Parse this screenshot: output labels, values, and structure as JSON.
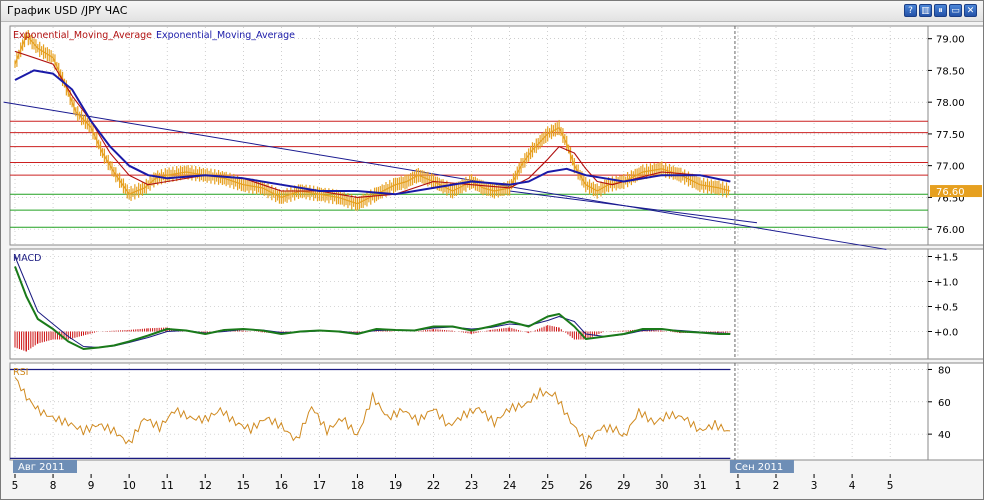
{
  "window": {
    "title": "График USD /JPY  ЧАС",
    "buttons": [
      {
        "name": "help-button",
        "glyph": "?"
      },
      {
        "name": "columns-button",
        "glyph": "▥"
      },
      {
        "name": "pause-button",
        "glyph": "⏸"
      },
      {
        "name": "minimize-button",
        "glyph": "▭"
      },
      {
        "name": "close-button",
        "glyph": "✕"
      }
    ]
  },
  "colors": {
    "price": "#e6a020",
    "ema_fast": "#b01010",
    "ema_slow": "#1a1aa8",
    "resistance": "#cc2020",
    "support": "#20a020",
    "trendline": "#1a1a90",
    "macd": "#1a7a1a",
    "signal": "#1a1a80",
    "histogram": "#cc1010",
    "rsi": "#d08a20",
    "rsi_levels": "#1a1a80",
    "grid": "#b0b0b0",
    "price_tag": "#e6a020"
  },
  "chart_data": [
    {
      "type": "line",
      "panel": "price",
      "title": "",
      "legend": [
        "Exponential_Moving_Average",
        "Exponential_Moving_Average"
      ],
      "ylim": [
        75.75,
        79.2
      ],
      "y_ticks": [
        "79.00",
        "78.50",
        "78.00",
        "77.50",
        "77.00",
        "76.50",
        "76.00"
      ],
      "current_price_label": "76.60",
      "current_price": 76.6,
      "x_ticks": [
        "5",
        "8",
        "9",
        "10",
        "11",
        "12",
        "15",
        "16",
        "17",
        "18",
        "19",
        "22",
        "23",
        "24",
        "25",
        "26",
        "29",
        "30",
        "31",
        "1",
        "2",
        "3",
        "4",
        "5"
      ],
      "x_ticks_sep": 19,
      "month_labels": [
        {
          "label": "Авг 2011",
          "at": 0
        },
        {
          "label": "Сен 2011",
          "at": 19
        }
      ],
      "last_data_slot": 18.8,
      "series": [
        {
          "name": "price",
          "x": [
            0,
            0.3,
            0.6,
            1,
            1.3,
            1.6,
            2,
            2.3,
            2.6,
            3,
            3.4,
            3.7,
            4,
            4.5,
            5,
            5.5,
            6,
            6.5,
            7,
            7.5,
            8,
            8.5,
            9,
            9.5,
            10,
            10.3,
            10.6,
            11,
            11.5,
            12,
            12.3,
            12.6,
            13,
            13.3,
            13.6,
            14,
            14.3,
            14.5,
            14.7,
            15,
            15.3,
            15.6,
            16,
            16.5,
            17,
            17.5,
            18,
            18.5,
            18.8
          ],
          "y": [
            78.6,
            79.05,
            78.85,
            78.7,
            78.3,
            77.85,
            77.6,
            77.2,
            76.9,
            76.55,
            76.65,
            76.8,
            76.85,
            76.9,
            76.85,
            76.8,
            76.7,
            76.65,
            76.5,
            76.6,
            76.55,
            76.5,
            76.4,
            76.55,
            76.7,
            76.75,
            76.85,
            76.75,
            76.6,
            76.75,
            76.65,
            76.6,
            76.65,
            77.0,
            77.25,
            77.5,
            77.6,
            77.35,
            77.0,
            76.7,
            76.6,
            76.7,
            76.75,
            76.9,
            76.95,
            76.85,
            76.7,
            76.65,
            76.6
          ]
        },
        {
          "name": "ema_fast",
          "x": [
            0,
            0.5,
            1,
            1.5,
            2,
            2.5,
            3,
            3.5,
            4,
            5,
            6,
            7,
            8,
            9,
            10,
            11,
            12,
            13,
            13.5,
            14,
            14.3,
            14.7,
            15,
            15.3,
            15.7,
            16,
            17,
            18,
            18.8
          ],
          "y": [
            78.8,
            78.7,
            78.6,
            78.1,
            77.7,
            77.2,
            76.85,
            76.7,
            76.75,
            76.85,
            76.8,
            76.6,
            76.6,
            76.5,
            76.55,
            76.75,
            76.7,
            76.65,
            76.8,
            77.1,
            77.3,
            77.2,
            76.95,
            76.75,
            76.7,
            76.75,
            76.9,
            76.85,
            76.75
          ]
        },
        {
          "name": "ema_slow",
          "x": [
            0,
            0.5,
            1,
            1.5,
            2,
            2.5,
            3,
            3.5,
            4,
            5,
            6,
            7,
            8,
            9,
            10,
            11,
            12,
            13,
            13.5,
            14,
            14.5,
            15,
            15.5,
            16,
            17,
            18,
            18.8
          ],
          "y": [
            78.35,
            78.5,
            78.45,
            78.2,
            77.7,
            77.3,
            77.0,
            76.85,
            76.8,
            76.85,
            76.8,
            76.7,
            76.6,
            76.6,
            76.55,
            76.65,
            76.75,
            76.7,
            76.75,
            76.9,
            76.95,
            76.85,
            76.8,
            76.75,
            76.85,
            76.85,
            76.75
          ]
        }
      ],
      "horizontal_levels": [
        {
          "y": 77.7,
          "kind": "resistance"
        },
        {
          "y": 77.52,
          "kind": "resistance"
        },
        {
          "y": 77.3,
          "kind": "resistance"
        },
        {
          "y": 77.05,
          "kind": "resistance"
        },
        {
          "y": 76.85,
          "kind": "resistance"
        },
        {
          "y": 76.55,
          "kind": "support"
        },
        {
          "y": 76.3,
          "kind": "support"
        },
        {
          "y": 76.03,
          "kind": "support"
        }
      ],
      "trendlines": [
        {
          "from": [
            -0.3,
            78.0
          ],
          "to": [
            22.9,
            75.68
          ]
        },
        {
          "from": [
            13.0,
            76.6
          ],
          "to": [
            19.5,
            76.1
          ]
        }
      ]
    },
    {
      "type": "line",
      "panel": "macd",
      "title": "MACD",
      "ylim": [
        -0.55,
        1.65
      ],
      "y_ticks": [
        "+1.5",
        "+1.0",
        "+0.5",
        "+0.0"
      ],
      "series": [
        {
          "name": "macd",
          "x": [
            0,
            0.3,
            0.6,
            1,
            1.4,
            1.8,
            2.2,
            2.6,
            3,
            3.5,
            4,
            4.5,
            5,
            5.5,
            6,
            6.5,
            7,
            7.5,
            8,
            8.5,
            9,
            9.5,
            10,
            10.5,
            11,
            11.5,
            12,
            12.5,
            13,
            13.5,
            14,
            14.3,
            14.7,
            15,
            15.5,
            16,
            16.5,
            17,
            17.5,
            18,
            18.5,
            18.8
          ],
          "y": [
            1.3,
            0.7,
            0.25,
            0.05,
            -0.2,
            -0.35,
            -0.32,
            -0.28,
            -0.2,
            -0.08,
            0.05,
            0.02,
            -0.05,
            0.03,
            0.05,
            0.02,
            -0.05,
            0.0,
            0.02,
            0.0,
            -0.05,
            0.05,
            0.03,
            0.02,
            0.1,
            0.1,
            0.02,
            0.1,
            0.2,
            0.1,
            0.3,
            0.35,
            0.1,
            -0.15,
            -0.1,
            -0.05,
            0.05,
            0.05,
            0.0,
            -0.02,
            -0.05,
            -0.05
          ]
        },
        {
          "name": "signal",
          "x": [
            0,
            0.3,
            0.6,
            1,
            1.4,
            1.8,
            2.2,
            2.6,
            3,
            3.5,
            4,
            4.5,
            5,
            5.5,
            6,
            6.5,
            7,
            7.5,
            8,
            8.5,
            9,
            9.5,
            10,
            10.5,
            11,
            11.5,
            12,
            12.5,
            13,
            13.5,
            14,
            14.3,
            14.7,
            15,
            15.5,
            16,
            16.5,
            17,
            17.5,
            18,
            18.5,
            18.8
          ],
          "y": [
            1.5,
            0.95,
            0.4,
            0.15,
            -0.1,
            -0.3,
            -0.32,
            -0.29,
            -0.22,
            -0.12,
            0.0,
            0.02,
            -0.03,
            0.0,
            0.04,
            0.03,
            -0.02,
            -0.01,
            0.01,
            0.01,
            -0.03,
            0.02,
            0.03,
            0.02,
            0.07,
            0.09,
            0.05,
            0.08,
            0.15,
            0.12,
            0.22,
            0.3,
            0.2,
            -0.05,
            -0.1,
            -0.06,
            0.02,
            0.04,
            0.02,
            -0.01,
            -0.03,
            -0.04
          ]
        }
      ]
    },
    {
      "type": "line",
      "panel": "rsi",
      "title": "RSI",
      "ylim": [
        24,
        84
      ],
      "y_ticks": [
        "80",
        "60",
        "40"
      ],
      "levels": [
        80,
        25
      ],
      "series": [
        {
          "name": "rsi",
          "x": [
            0,
            0.3,
            0.6,
            1,
            1.4,
            1.8,
            2.2,
            2.6,
            3,
            3.4,
            3.8,
            4.2,
            4.6,
            5,
            5.4,
            5.8,
            6.2,
            6.6,
            7,
            7.4,
            7.8,
            8.2,
            8.6,
            9,
            9.4,
            9.8,
            10.2,
            10.6,
            11,
            11.4,
            11.8,
            12.2,
            12.6,
            13,
            13.4,
            13.8,
            14.2,
            14.6,
            15,
            15.4,
            15.8,
            16,
            16.4,
            16.8,
            17.2,
            17.6,
            18,
            18.4,
            18.8
          ],
          "y": [
            75,
            63,
            55,
            50,
            47,
            42,
            46,
            42,
            34,
            50,
            44,
            55,
            50,
            49,
            55,
            47,
            43,
            50,
            45,
            36,
            57,
            42,
            50,
            39,
            63,
            50,
            55,
            48,
            56,
            45,
            52,
            56,
            47,
            56,
            58,
            66,
            64,
            48,
            35,
            44,
            43,
            38,
            54,
            47,
            52,
            50,
            42,
            46,
            41
          ]
        }
      ]
    }
  ]
}
